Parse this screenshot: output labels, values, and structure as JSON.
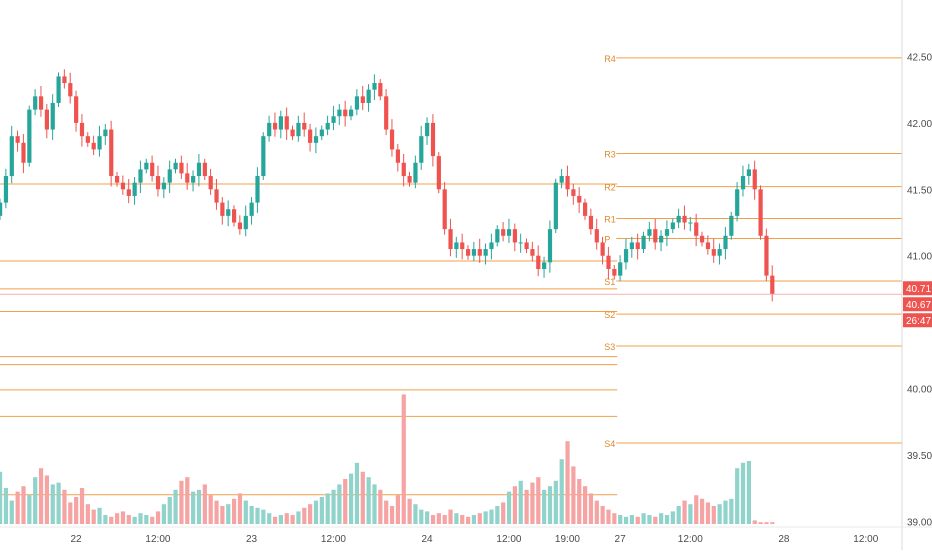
{
  "colors": {
    "up": "#26a69a",
    "down": "#ef5350",
    "volume_up": "#8fd3cb",
    "volume_down": "#f5a3a3",
    "pivot": "#f0a04b",
    "pivot_label": "#e08a2c",
    "axis_text": "#4a4a4a",
    "last_price_bg": "#ef5350",
    "last_price_text": "#ffffff",
    "last_price_line": "#f6b0b0"
  },
  "chart_data": {
    "type": "candlestick",
    "title": "",
    "xlabel": "",
    "ylabel": "",
    "ylim": [
      38.95,
      42.85
    ],
    "y_ticks": [
      39.0,
      39.5,
      40.0,
      40.5,
      41.0,
      41.5,
      42.0,
      42.5
    ],
    "y_tick_labels": [
      "39.00",
      "39.50",
      "40.00",
      "40.50",
      "41.00",
      "41.50",
      "42.00",
      "42.50"
    ],
    "x_tick_labels": [
      "22",
      "12:00",
      "23",
      "12:00",
      "24",
      "12:00",
      "19:00",
      "27",
      "12:00",
      "28",
      "12:00"
    ],
    "x_tick_bar_index": [
      13,
      27,
      43,
      57,
      73,
      87,
      97,
      106,
      118,
      134,
      148
    ],
    "grid": false,
    "last_price": {
      "price_label": "40.71",
      "value": 40.71,
      "second_label": "40.67",
      "countdown": "26:47"
    },
    "pivot_levels": [
      {
        "label": "R4",
        "value": 42.49
      },
      {
        "label": "R3",
        "value": 41.77
      },
      {
        "label": "R2",
        "value": 41.52
      },
      {
        "label": "R1",
        "value": 41.28
      },
      {
        "label": "P",
        "value": 41.13
      },
      {
        "label": "S1",
        "value": 40.81
      },
      {
        "label": "S2",
        "value": 40.56
      },
      {
        "label": "S3",
        "value": 40.32
      },
      {
        "label": "S4",
        "value": 39.59
      }
    ],
    "prior_levels": [
      41.54,
      40.96,
      40.75,
      40.58,
      40.24,
      40.18,
      39.99,
      39.79,
      39.2
    ],
    "prior_levels_end_bar": 105,
    "closes": [
      41.4,
      41.6,
      41.9,
      41.85,
      41.7,
      42.1,
      42.2,
      42.1,
      41.95,
      42.15,
      42.35,
      42.3,
      42.2,
      42.0,
      41.9,
      41.85,
      41.8,
      41.9,
      41.95,
      41.6,
      41.55,
      41.5,
      41.45,
      41.55,
      41.65,
      41.7,
      41.6,
      41.5,
      41.55,
      41.65,
      41.7,
      41.62,
      41.55,
      41.6,
      41.7,
      41.6,
      41.5,
      41.4,
      41.3,
      41.35,
      41.25,
      41.2,
      41.3,
      41.4,
      41.6,
      41.9,
      42.0,
      41.95,
      42.05,
      41.95,
      41.9,
      42.0,
      41.95,
      41.85,
      41.9,
      41.95,
      42.0,
      42.05,
      42.1,
      42.05,
      42.1,
      42.2,
      42.15,
      42.25,
      42.3,
      42.2,
      41.95,
      41.8,
      41.7,
      41.6,
      41.55,
      41.7,
      41.9,
      42.0,
      41.75,
      41.5,
      41.2,
      41.05,
      41.1,
      41.05,
      41.0,
      41.05,
      41.0,
      41.05,
      41.1,
      41.2,
      41.15,
      41.2,
      41.1,
      41.1,
      41.05,
      41.0,
      40.9,
      40.95,
      41.2,
      41.55,
      41.6,
      41.5,
      41.45,
      41.4,
      41.3,
      41.2,
      41.1,
      41.0,
      40.9,
      40.85,
      40.95,
      41.05,
      41.1,
      41.05,
      41.15,
      41.2,
      41.1,
      41.15,
      41.2,
      41.25,
      41.3,
      41.25,
      41.25,
      41.15,
      41.1,
      41.05,
      41.0,
      41.05,
      41.15,
      41.3,
      41.5,
      41.6,
      41.65,
      41.5,
      41.15,
      40.85,
      40.71
    ],
    "volumes": [
      2.9,
      2.0,
      1.3,
      1.8,
      2.1,
      1.6,
      2.6,
      3.1,
      2.7,
      2.2,
      2.3,
      1.9,
      1.2,
      1.5,
      2.0,
      1.1,
      0.8,
      0.9,
      0.5,
      0.4,
      0.6,
      0.7,
      0.5,
      0.4,
      0.6,
      0.5,
      0.4,
      0.7,
      1.1,
      1.5,
      1.9,
      2.4,
      2.6,
      1.8,
      1.9,
      2.2,
      1.6,
      1.3,
      1.0,
      1.1,
      1.4,
      1.7,
      1.3,
      1.0,
      0.9,
      0.8,
      0.6,
      0.4,
      0.5,
      0.6,
      0.5,
      0.7,
      0.9,
      1.1,
      1.3,
      1.5,
      1.7,
      1.9,
      2.2,
      2.5,
      2.8,
      3.4,
      2.9,
      2.6,
      2.2,
      1.9,
      1.3,
      1.0,
      1.6,
      7.2,
      1.4,
      1.1,
      0.8,
      0.7,
      0.5,
      0.6,
      0.5,
      0.8,
      0.6,
      0.5,
      0.4,
      0.5,
      0.6,
      0.7,
      0.8,
      1.0,
      1.2,
      1.8,
      2.1,
      2.4,
      1.9,
      2.3,
      2.6,
      1.9,
      2.1,
      2.4,
      3.6,
      4.6,
      3.2,
      2.5,
      2.1,
      1.7,
      1.3,
      1.0,
      0.8,
      0.6,
      0.5,
      0.4,
      0.5,
      0.4,
      0.6,
      0.5,
      0.4,
      0.6,
      0.5,
      0.7,
      1.0,
      1.3,
      1.1,
      1.6,
      1.4,
      1.2,
      1.0,
      1.1,
      1.3,
      1.4,
      3.1,
      3.4,
      3.5,
      0.2,
      0.1,
      0.1,
      0.1
    ]
  }
}
